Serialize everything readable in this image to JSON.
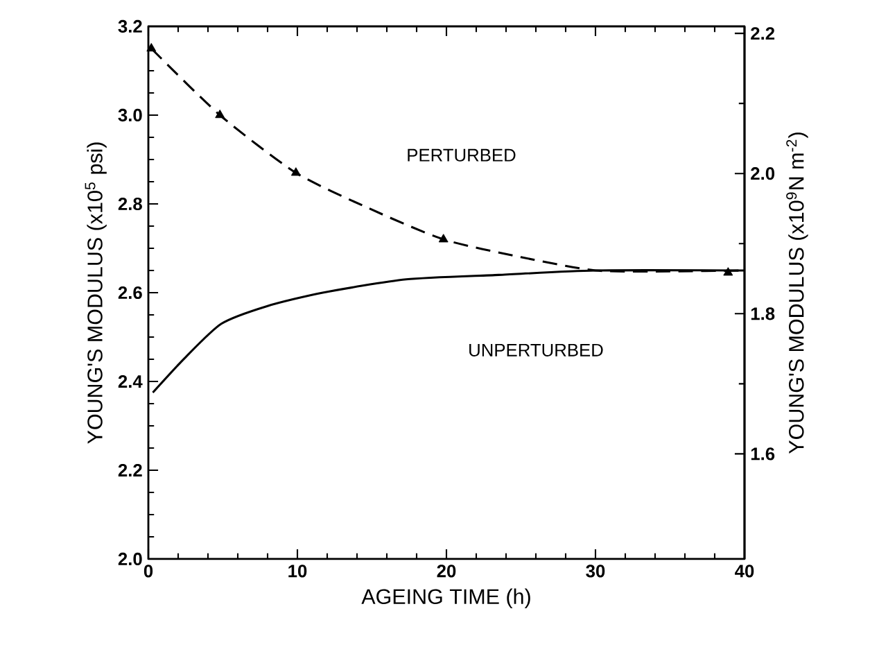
{
  "chart_data": {
    "type": "line",
    "xlabel": "AGEING TIME  (h)",
    "ylabel": "YOUNG'S MODULUS (x10$^{5}$ psi)",
    "y2label": "YOUNG'S MODULUS (x10$^{9}$N m$^{-2}$)",
    "xlim": [
      0,
      40
    ],
    "xticks": [
      0,
      10,
      20,
      30,
      40
    ],
    "ylim": [
      2.0,
      3.2
    ],
    "yticks": [
      {
        "value": 2.0,
        "label": "2.0"
      },
      {
        "value": 2.2,
        "label": "2.2"
      },
      {
        "value": 2.4,
        "label": "2.4"
      },
      {
        "value": 2.6,
        "label": "2.6"
      },
      {
        "value": 2.8,
        "label": "2.8"
      },
      {
        "value": 3.0,
        "label": "3.0"
      },
      {
        "value": 3.2,
        "label": "3.2"
      }
    ],
    "y2lim": [
      1.45,
      2.21
    ],
    "y2ticks": [
      {
        "value": 1.6,
        "label": "1.6"
      },
      {
        "value": 1.8,
        "label": "1.8"
      },
      {
        "value": 2.0,
        "label": "2.0"
      },
      {
        "value": 2.2,
        "label": "2.2"
      }
    ],
    "grid": false,
    "series": [
      {
        "line_style": "dashed",
        "marker": "none",
        "color": "#000000",
        "x": [
          0.2,
          4.8,
          9.9,
          14.8,
          19.8,
          25,
          30,
          35,
          40
        ],
        "values": [
          3.15,
          3.0,
          2.87,
          2.79,
          2.72,
          2.68,
          2.65,
          2.648,
          2.65
        ]
      },
      {
        "type": "scatter",
        "marker": "triangle",
        "color": "#000000",
        "x": [
          0.2,
          4.8,
          9.9,
          19.8,
          38.9
        ],
        "values": [
          3.15,
          3.0,
          2.87,
          2.72,
          2.645
        ]
      },
      {
        "line_style": "solid",
        "marker": "none",
        "color": "#000000",
        "x": [
          0.3,
          2.45,
          4.9,
          8.0,
          11.7,
          17.3,
          23.5,
          30,
          40
        ],
        "values": [
          2.375,
          2.453,
          2.53,
          2.57,
          2.6,
          2.63,
          2.64,
          2.65,
          2.65
        ]
      }
    ],
    "annotations": [
      "PERTURBED",
      "UNPERTURBED"
    ]
  }
}
